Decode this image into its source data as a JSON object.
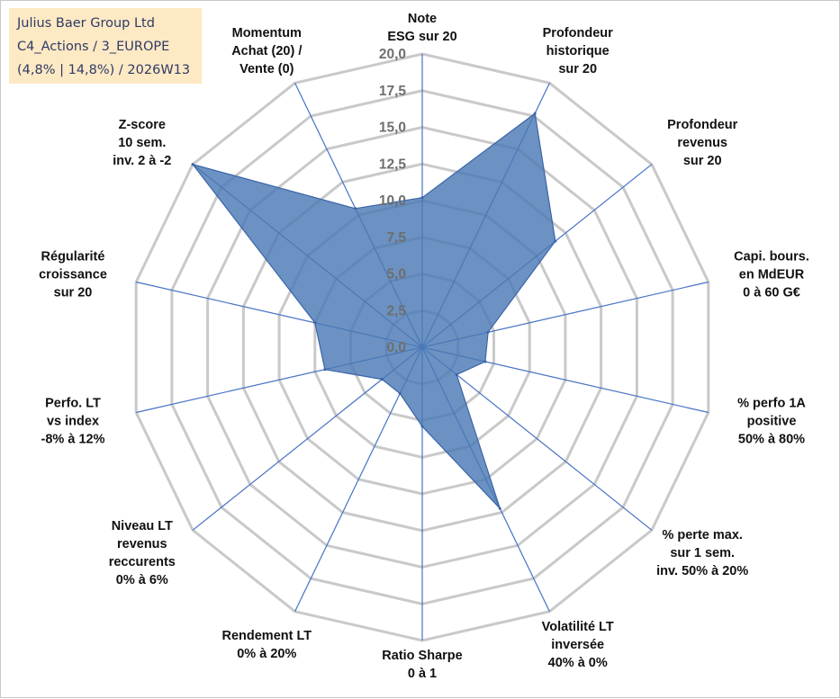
{
  "chart_data": {
    "type": "radar",
    "title_lines": [
      "Julius Baer Group Ltd",
      "C4_Actions / 3_EUROPE",
      "(4,8% | 14,8%) / 2026W13"
    ],
    "rmax": 20,
    "ticks": [
      "0,0",
      "2,5",
      "5,0",
      "7,5",
      "10,0",
      "12,5",
      "15,0",
      "17,5",
      "20,0"
    ],
    "axes": [
      {
        "label": [
          "Note",
          "ESG sur 20"
        ],
        "value": 10.2
      },
      {
        "label": [
          "Profondeur",
          "historique",
          "sur 20"
        ],
        "value": 17.7
      },
      {
        "label": [
          "Profondeur",
          "revenus",
          "sur 20"
        ],
        "value": 11.6
      },
      {
        "label": [
          "Capi. bours.",
          "en MdEUR",
          "0 à 60 G€"
        ],
        "value": 4.6
      },
      {
        "label": [
          "% perfo 1A",
          "positive",
          "50% à 80%"
        ],
        "value": 4.4
      },
      {
        "label": [
          "% perte max.",
          "sur 1 sem.",
          "inv. 50% à 20%"
        ],
        "value": 3.0
      },
      {
        "label": [
          "Volatilité LT",
          "inversée",
          "40% à 0%"
        ],
        "value": 12.2
      },
      {
        "label": [
          "Ratio Sharpe",
          "0 à 1"
        ],
        "value": 5.4
      },
      {
        "label": [
          "Rendement LT",
          "0% à 20%"
        ],
        "value": 3.5
      },
      {
        "label": [
          "Niveau LT",
          "revenus",
          "reccurents",
          "0% à 6%"
        ],
        "value": 3.5
      },
      {
        "label": [
          "Perfo. LT",
          "vs index",
          "-8% à 12%"
        ],
        "value": 6.8
      },
      {
        "label": [
          "Régularité",
          "croissance",
          "sur 20"
        ],
        "value": 7.5
      },
      {
        "label": [
          "Z-score",
          "10 sem.",
          "inv. 2 à -2"
        ],
        "value": 20.0
      },
      {
        "label": [
          "Momentum",
          "Achat (20) /",
          "Vente (0)"
        ],
        "value": 10.5
      }
    ],
    "colors": {
      "fill": "#4a7ab5",
      "stroke": "#3a64a8",
      "grid": "#c9c9c9",
      "spoke": "#4572c4",
      "tick": "#6e6e6e"
    }
  }
}
